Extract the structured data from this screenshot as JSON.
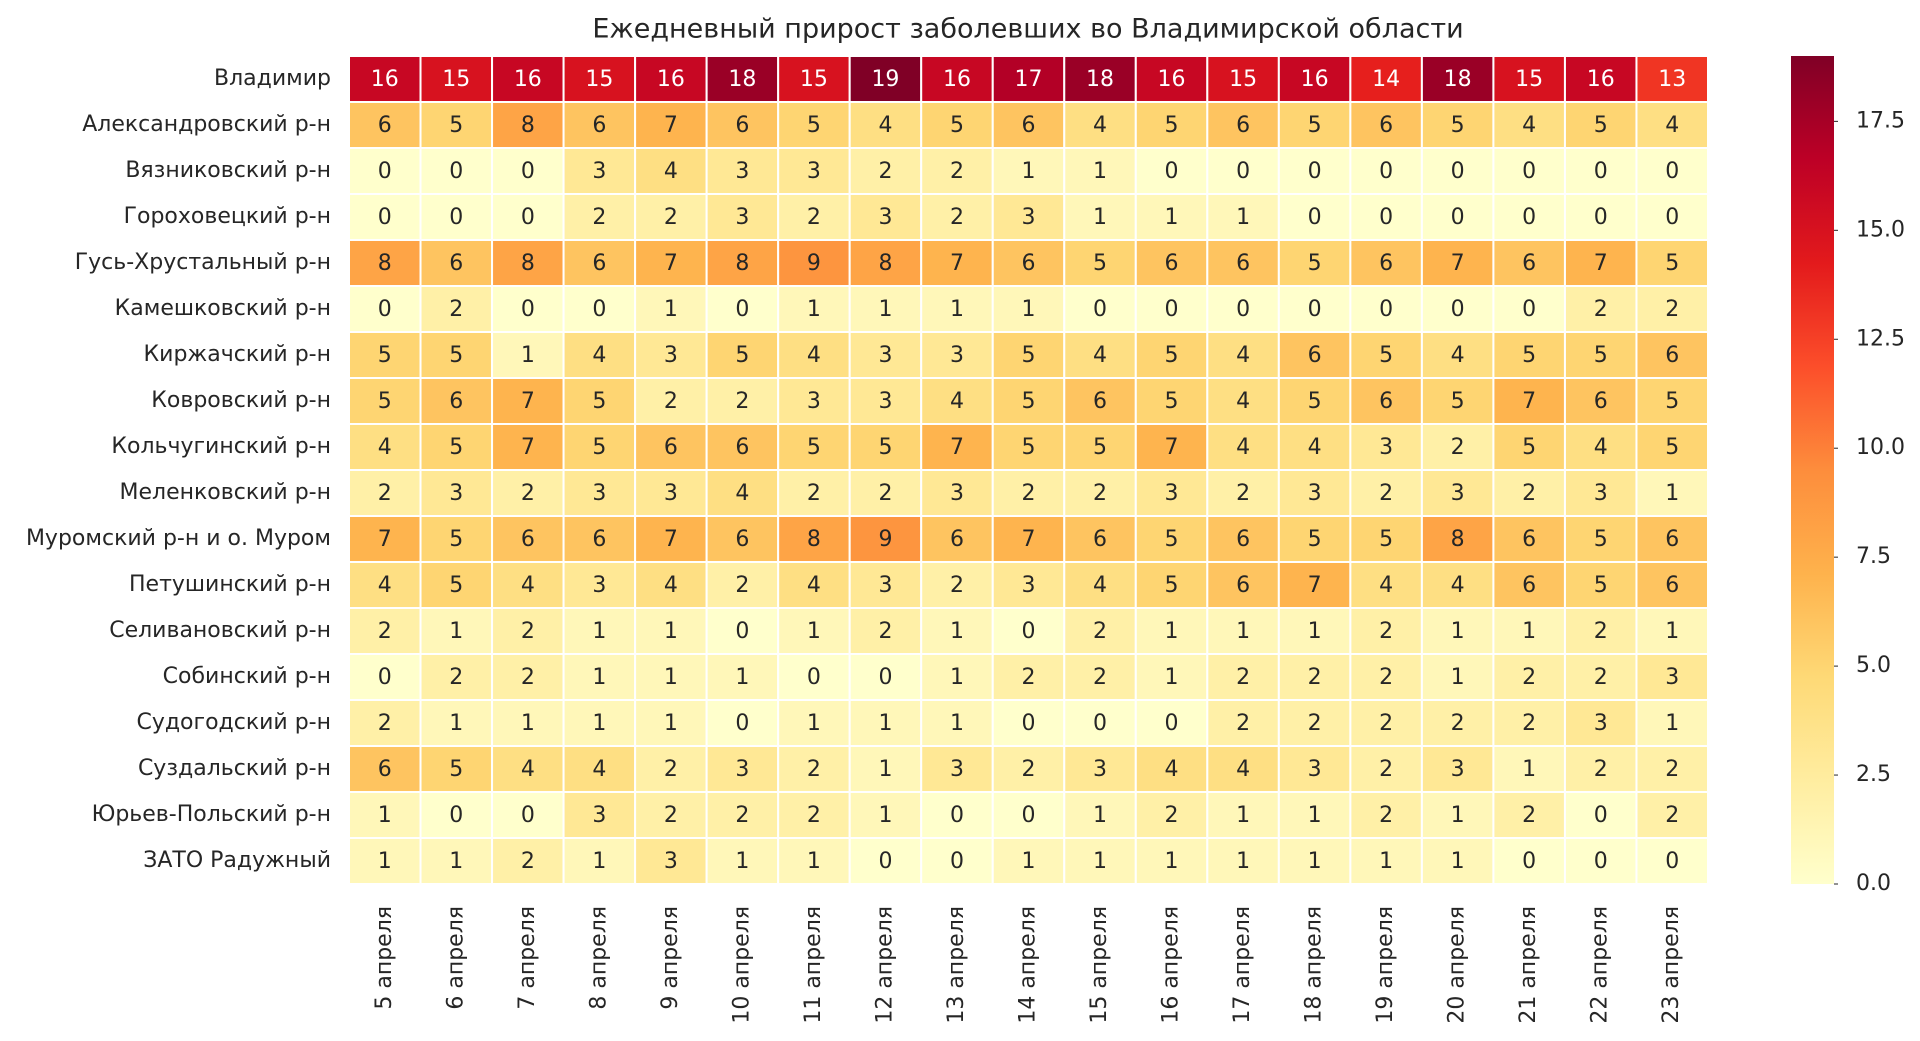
{
  "chart_data": {
    "type": "heatmap",
    "title": "Ежедневный прирост заболевших во Владимирской области",
    "x": [
      "5 апреля",
      "6 апреля",
      "7 апреля",
      "8 апреля",
      "9 апреля",
      "10 апреля",
      "11 апреля",
      "12 апреля",
      "13 апреля",
      "14 апреля",
      "15 апреля",
      "16 апреля",
      "17 апреля",
      "18 апреля",
      "19 апреля",
      "20 апреля",
      "21 апреля",
      "22 апреля",
      "23 апреля"
    ],
    "y": [
      "Владимир",
      "Александровский р-н",
      "Вязниковский р-н",
      "Гороховецкий р-н",
      "Гусь-Хрустальный р-н",
      "Камешковский р-н",
      "Киржачский р-н",
      "Ковровский р-н",
      "Кольчугинский р-н",
      "Меленковский р-н",
      "Муромский р-н и о. Муром",
      "Петушинский р-н",
      "Селивановский р-н",
      "Собинский р-н",
      "Судогодский р-н",
      "Суздальский р-н",
      "Юрьев-Польский р-н",
      "ЗАТО Радужный"
    ],
    "values": [
      [
        16,
        15,
        16,
        15,
        16,
        18,
        15,
        19,
        16,
        17,
        18,
        16,
        15,
        16,
        14,
        18,
        15,
        16,
        13
      ],
      [
        6,
        5,
        8,
        6,
        7,
        6,
        5,
        4,
        5,
        6,
        4,
        5,
        6,
        5,
        6,
        5,
        4,
        5,
        4
      ],
      [
        0,
        0,
        0,
        3,
        4,
        3,
        3,
        2,
        2,
        1,
        1,
        0,
        0,
        0,
        0,
        0,
        0,
        0,
        0
      ],
      [
        0,
        0,
        0,
        2,
        2,
        3,
        2,
        3,
        2,
        3,
        1,
        1,
        1,
        0,
        0,
        0,
        0,
        0,
        0
      ],
      [
        8,
        6,
        8,
        6,
        7,
        8,
        9,
        8,
        7,
        6,
        5,
        6,
        6,
        5,
        6,
        7,
        6,
        7,
        5
      ],
      [
        0,
        2,
        0,
        0,
        1,
        0,
        1,
        1,
        1,
        1,
        0,
        0,
        0,
        0,
        0,
        0,
        0,
        2,
        2
      ],
      [
        5,
        5,
        1,
        4,
        3,
        5,
        4,
        3,
        3,
        5,
        4,
        5,
        4,
        6,
        5,
        4,
        5,
        5,
        6
      ],
      [
        5,
        6,
        7,
        5,
        2,
        2,
        3,
        3,
        4,
        5,
        6,
        5,
        4,
        5,
        6,
        5,
        7,
        6,
        5
      ],
      [
        4,
        5,
        7,
        5,
        6,
        6,
        5,
        5,
        7,
        5,
        5,
        7,
        4,
        4,
        3,
        2,
        5,
        4,
        5
      ],
      [
        2,
        3,
        2,
        3,
        3,
        4,
        2,
        2,
        3,
        2,
        2,
        3,
        2,
        3,
        2,
        3,
        2,
        3,
        1
      ],
      [
        7,
        5,
        6,
        6,
        7,
        6,
        8,
        9,
        6,
        7,
        6,
        5,
        6,
        5,
        5,
        8,
        6,
        5,
        6
      ],
      [
        4,
        5,
        4,
        3,
        4,
        2,
        4,
        3,
        2,
        3,
        4,
        5,
        6,
        7,
        4,
        4,
        6,
        5,
        6
      ],
      [
        2,
        1,
        2,
        1,
        1,
        0,
        1,
        2,
        1,
        0,
        2,
        1,
        1,
        1,
        2,
        1,
        1,
        2,
        1
      ],
      [
        0,
        2,
        2,
        1,
        1,
        1,
        0,
        0,
        1,
        2,
        2,
        1,
        2,
        2,
        2,
        1,
        2,
        2,
        3
      ],
      [
        2,
        1,
        1,
        1,
        1,
        0,
        1,
        1,
        1,
        0,
        0,
        0,
        2,
        2,
        2,
        2,
        2,
        3,
        1
      ],
      [
        6,
        5,
        4,
        4,
        2,
        3,
        2,
        1,
        3,
        2,
        3,
        4,
        4,
        3,
        2,
        3,
        1,
        2,
        2
      ],
      [
        1,
        0,
        0,
        3,
        2,
        2,
        2,
        1,
        0,
        0,
        1,
        2,
        1,
        1,
        2,
        1,
        2,
        0,
        2
      ],
      [
        1,
        1,
        2,
        1,
        3,
        1,
        1,
        0,
        0,
        1,
        1,
        1,
        1,
        1,
        1,
        1,
        0,
        0,
        0
      ]
    ],
    "colormap": "YlOrRd",
    "zlim": [
      0,
      19
    ],
    "zticks": [
      {
        "value": 0,
        "label": "0.0"
      },
      {
        "value": 2.5,
        "label": "2.5"
      },
      {
        "value": 5,
        "label": "5.0"
      },
      {
        "value": 7.5,
        "label": "7.5"
      },
      {
        "value": 10,
        "label": "10.0"
      },
      {
        "value": 12.5,
        "label": "12.5"
      },
      {
        "value": 15,
        "label": "15.0"
      },
      {
        "value": 17.5,
        "label": "17.5"
      }
    ]
  }
}
